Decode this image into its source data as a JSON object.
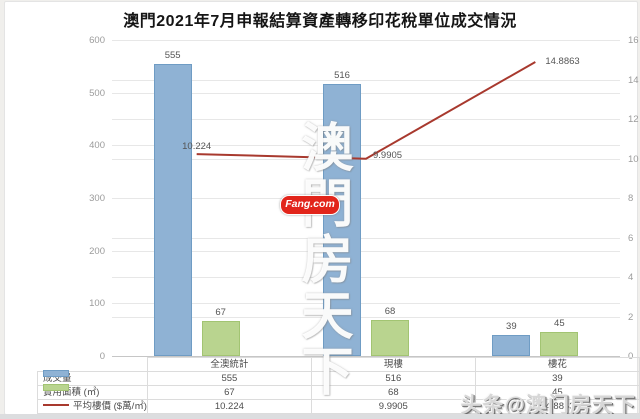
{
  "chart_data": {
    "type": "bar+line",
    "title": "澳門2021年7月申報結算資產轉移印花稅單位成交情況",
    "categories": [
      "全澳統計",
      "現樓",
      "樓花"
    ],
    "series": [
      {
        "name": "成交量",
        "type": "bar",
        "axis": "left",
        "color": "#8fb2d4",
        "border_color": "#6f9cc4",
        "values": [
          555,
          516,
          39
        ]
      },
      {
        "name": "實用面積 (㎡)",
        "type": "bar",
        "axis": "left",
        "color": "#b9d48f",
        "border_color": "#a2c472",
        "values": [
          67,
          68,
          45
        ]
      },
      {
        "name": "平均樓價 ($萬/㎡)",
        "type": "line",
        "axis": "right",
        "color": "#a8392e",
        "values": [
          10.224,
          9.9905,
          14.8863
        ],
        "value_labels": [
          "10.224",
          "9.9905",
          "14.8863"
        ]
      }
    ],
    "left_axis": {
      "min": 0,
      "max": 600,
      "step": 100,
      "ticks": [
        0,
        100,
        200,
        300,
        400,
        500,
        600
      ]
    },
    "right_axis": {
      "min": 0,
      "max": 16,
      "step": 2,
      "ticks": [
        0,
        2,
        4,
        6,
        8,
        10,
        12,
        14,
        16
      ]
    },
    "grid": true,
    "legend_position": "table-bottom"
  },
  "watermarks": {
    "vertical_text": "澳門房天下",
    "logo_badge": "Fang.com",
    "bottom_right": "头条@澳门房天下"
  },
  "colors": {
    "bar_blue": "#8fb2d4",
    "bar_green": "#b9d48f",
    "line_red": "#a8392e",
    "grid": "#e7e7e7",
    "axis_text": "#9b9b9b",
    "label_text": "#555555",
    "badge_red": "#e2251b"
  }
}
